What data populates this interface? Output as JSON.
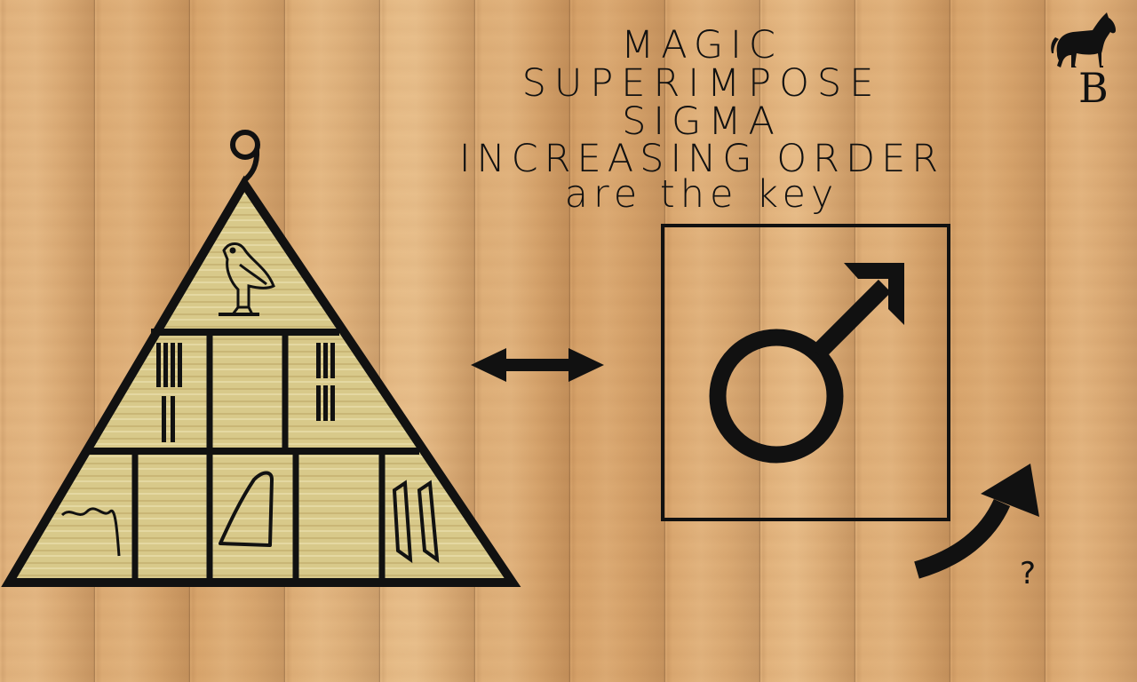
{
  "title_lines": [
    "MAGIC",
    "SUPERIMPOSE",
    "SIGMA",
    "INCREASING ORDER",
    "are the key"
  ],
  "pyramid": {
    "top_number": "9",
    "top_glyph": "bird-hieroglyph",
    "middle_row": [
      "tally-hieroglyph",
      "empty",
      "tally-hieroglyph"
    ],
    "bottom_row": [
      "wavy-line-hieroglyph",
      "empty",
      "hill-hieroglyph",
      "empty",
      "reed-hieroglyph"
    ]
  },
  "symbol_box": {
    "symbol": "male-symbol"
  },
  "question_mark": "?",
  "logo": {
    "letter": "B",
    "icon": "horse-icon"
  },
  "colors": {
    "ink": "#111111",
    "papyrus": "#d8c98a",
    "wood": "#dfad74"
  }
}
